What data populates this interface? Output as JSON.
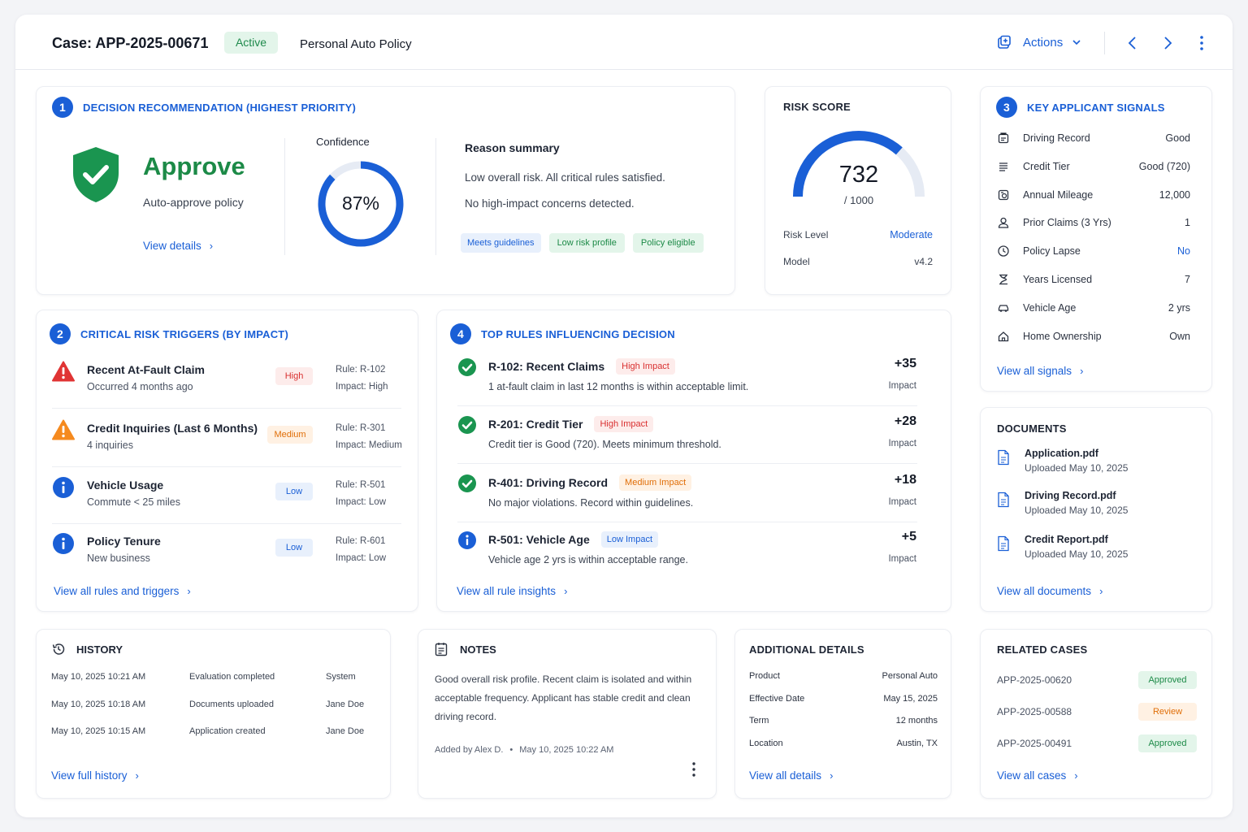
{
  "header": {
    "case_title": "Case: APP-2025-00671",
    "status": "Active",
    "policy_type": "Personal Auto Policy",
    "actions_label": "Actions"
  },
  "decision": {
    "number": "1",
    "heading": "DECISION RECOMMENDATION (HIGHEST PRIORITY)",
    "verdict": "Approve",
    "verdict_sub": "Auto-approve policy",
    "view_details": "View details",
    "confidence_label": "Confidence",
    "confidence_text": "87%",
    "confidence_value": 0.87,
    "reason_title": "Reason summary",
    "reason_lines": [
      "Low overall risk. All critical rules satisfied.",
      "No high-impact concerns detected."
    ],
    "tags": [
      "Meets guidelines",
      "Low risk profile",
      "Policy eligible"
    ]
  },
  "risk_score": {
    "heading": "RISK SCORE",
    "score": "732",
    "score_max": "/ 1000",
    "score_fraction": 0.732,
    "level_label": "Risk Level",
    "level_value": "Moderate",
    "model_label": "Model",
    "model_value": "v4.2"
  },
  "signals": {
    "number": "3",
    "heading": "KEY APPLICANT SIGNALS",
    "items": [
      {
        "label": "Driving Record",
        "value": "Good",
        "icon": "car-record-icon"
      },
      {
        "label": "Credit Tier",
        "value": "Good (720)",
        "icon": "list-icon"
      },
      {
        "label": "Annual Mileage",
        "value": "12,000",
        "icon": "gauge-icon"
      },
      {
        "label": "Prior Claims (3 Yrs)",
        "value": "1",
        "icon": "user-icon"
      },
      {
        "label": "Policy Lapse",
        "value": "No",
        "icon": "clock-icon"
      },
      {
        "label": "Years Licensed",
        "value": "7",
        "icon": "hourglass-icon"
      },
      {
        "label": "Vehicle Age",
        "value": "2 yrs",
        "icon": "car-icon"
      },
      {
        "label": "Home Ownership",
        "value": "Own",
        "icon": "home-icon"
      }
    ],
    "view_all": "View all signals"
  },
  "triggers": {
    "number": "2",
    "heading": "CRITICAL RISK TRIGGERS (BY IMPACT)",
    "items": [
      {
        "title": "Recent At-Fault Claim",
        "sub": "Occurred 4 months ago",
        "badge": "High",
        "rule": "Rule: R-102",
        "impact": "Impact: High"
      },
      {
        "title": "Credit Inquiries (Last 6 Months)",
        "sub": "4 inquiries",
        "badge": "Medium",
        "rule": "Rule: R-301",
        "impact": "Impact: Medium"
      },
      {
        "title": "Vehicle Usage",
        "sub": "Commute < 25 miles",
        "badge": "Low",
        "rule": "Rule: R-501",
        "impact": "Impact: Low"
      },
      {
        "title": "Policy Tenure",
        "sub": "New business",
        "badge": "Low",
        "rule": "Rule: R-601",
        "impact": "Impact: Low"
      }
    ],
    "view_all": "View all rules and triggers"
  },
  "rules": {
    "number": "4",
    "heading": "TOP RULES INFLUENCING DECISION",
    "items": [
      {
        "title": "R-102: Recent Claims",
        "badge": "High Impact",
        "desc": "1 at-fault claim in last 12 months is within acceptable limit.",
        "score": "+35",
        "score_label": "Impact"
      },
      {
        "title": "R-201: Credit Tier",
        "badge": "High Impact",
        "desc": "Credit tier is Good (720). Meets minimum threshold.",
        "score": "+28",
        "score_label": "Impact"
      },
      {
        "title": "R-401: Driving Record",
        "badge": "Medium Impact",
        "desc": "No major violations. Record within guidelines.",
        "score": "+18",
        "score_label": "Impact"
      },
      {
        "title": "R-501: Vehicle Age",
        "badge": "Low Impact",
        "desc": "Vehicle age 2 yrs is within acceptable range.",
        "score": "+5",
        "score_label": "Impact"
      }
    ],
    "view_all": "View all rule insights"
  },
  "documents": {
    "heading": "DOCUMENTS",
    "items": [
      {
        "name": "Application.pdf",
        "uploaded": "Uploaded May 10, 2025"
      },
      {
        "name": "Driving Record.pdf",
        "uploaded": "Uploaded May 10, 2025"
      },
      {
        "name": "Credit Report.pdf",
        "uploaded": "Uploaded May 10, 2025"
      }
    ],
    "view_all": "View all documents"
  },
  "history": {
    "heading": "HISTORY",
    "items": [
      {
        "time": "May 10, 2025 10:21 AM",
        "event": "Evaluation completed",
        "actor": "System"
      },
      {
        "time": "May 10, 2025 10:18 AM",
        "event": "Documents uploaded",
        "actor": "Jane Doe"
      },
      {
        "time": "May 10, 2025 10:15 AM",
        "event": "Application created",
        "actor": "Jane Doe"
      }
    ],
    "view_all": "View full history"
  },
  "notes": {
    "heading": "NOTES",
    "lines": [
      "Good overall risk profile. Recent claim is isolated and within",
      "acceptable frequency. Applicant has stable credit and clean",
      "driving record."
    ],
    "author": "Added by Alex D.",
    "timestamp": "May 10, 2025 10:22 AM"
  },
  "details": {
    "heading": "ADDITIONAL DETAILS",
    "items": [
      {
        "label": "Product",
        "value": "Personal Auto"
      },
      {
        "label": "Effective Date",
        "value": "May 15, 2025"
      },
      {
        "label": "Term",
        "value": "12 months"
      },
      {
        "label": "Location",
        "value": "Austin, TX"
      }
    ],
    "view_all": "View all details"
  },
  "related": {
    "heading": "RELATED CASES",
    "items": [
      {
        "id": "APP-2025-00620",
        "status": "Approved"
      },
      {
        "id": "APP-2025-00588",
        "status": "Review"
      },
      {
        "id": "APP-2025-00491",
        "status": "Approved"
      }
    ],
    "view_all": "View all cases"
  },
  "colors": {
    "accent": "#1a5fd6",
    "success": "#1c8a47",
    "high": "#d93030",
    "medium": "#f07d12",
    "low": "#1a5fd6"
  }
}
